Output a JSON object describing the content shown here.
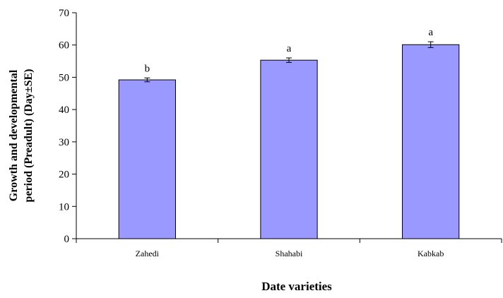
{
  "chart_data": {
    "type": "bar",
    "categories": [
      "Zahedi",
      "Shahabi",
      "Kabkab"
    ],
    "values": [
      49.2,
      55.3,
      60.1
    ],
    "errors": [
      0.6,
      0.7,
      0.9
    ],
    "significance_letters": [
      "b",
      "a",
      "a"
    ],
    "xlabel": "Date varieties",
    "ylabel_lines": [
      "Growth  and developmental",
      "period  (Preadult)  (Day±SE)"
    ],
    "ylim": [
      0,
      70
    ],
    "yticks": [
      0,
      10,
      20,
      30,
      40,
      50,
      60,
      70
    ],
    "grid": false,
    "colors": {
      "bar_fill": "#9999ff",
      "bar_stroke": "#000000",
      "axis": "#000000"
    }
  }
}
